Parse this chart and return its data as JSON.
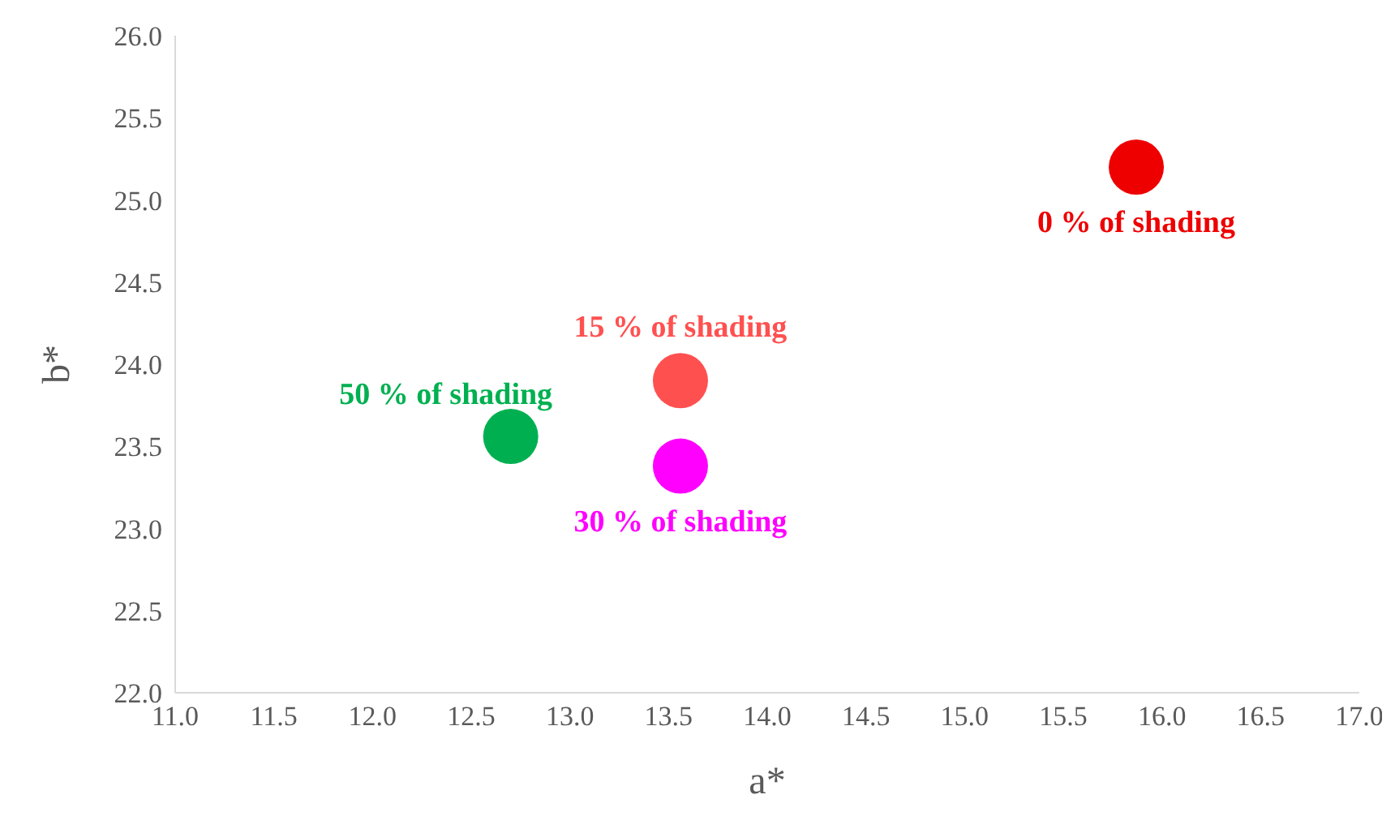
{
  "chart_data": {
    "type": "scatter",
    "xlabel": "a*",
    "ylabel": "b*",
    "xlim": [
      11,
      17
    ],
    "xticks": [
      {
        "value": 11,
        "label": "11.0"
      },
      {
        "value": 11.5,
        "label": "11.5"
      },
      {
        "value": 12,
        "label": "12.0"
      },
      {
        "value": 12.5,
        "label": "12.5"
      },
      {
        "value": 13,
        "label": "13.0"
      },
      {
        "value": 13.5,
        "label": "13.5"
      },
      {
        "value": 14,
        "label": "14.0"
      },
      {
        "value": 14.5,
        "label": "14.5"
      },
      {
        "value": 15,
        "label": "15.0"
      },
      {
        "value": 15.5,
        "label": "15.5"
      },
      {
        "value": 16,
        "label": "16.0"
      },
      {
        "value": 16.5,
        "label": "16.5"
      },
      {
        "value": 17,
        "label": "17.0"
      }
    ],
    "ylim": [
      22,
      26
    ],
    "yticks": [
      {
        "value": 22,
        "label": "22.0"
      },
      {
        "value": 22.5,
        "label": "22.5"
      },
      {
        "value": 23,
        "label": "23.0"
      },
      {
        "value": 23.5,
        "label": "23.5"
      },
      {
        "value": 24,
        "label": "24.0"
      },
      {
        "value": 24.5,
        "label": "24.5"
      },
      {
        "value": 25,
        "label": "25.0"
      },
      {
        "value": 25.5,
        "label": "25.5"
      },
      {
        "value": 26,
        "label": "26.0"
      }
    ],
    "grid": false,
    "legend": false,
    "marker": "circle",
    "series": [
      {
        "name": "0 %  of shading",
        "color": "#ee0000",
        "x": [
          15.87
        ],
        "values": [
          25.2
        ]
      },
      {
        "name": "15 %  of shading",
        "color": "#ff5050",
        "x": [
          13.56
        ],
        "values": [
          23.9
        ]
      },
      {
        "name": "30 %  of shading",
        "color": "#ff00ff",
        "x": [
          13.56
        ],
        "values": [
          23.38
        ]
      },
      {
        "name": "50 %  of shading",
        "color": "#00b050",
        "x": [
          12.7
        ],
        "values": [
          23.56
        ]
      }
    ]
  }
}
